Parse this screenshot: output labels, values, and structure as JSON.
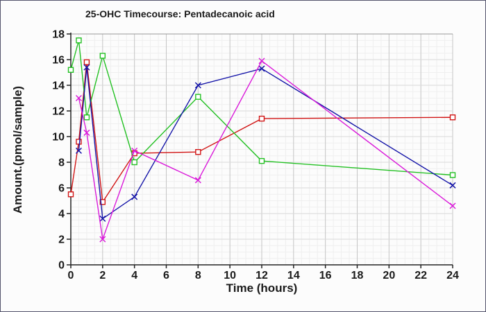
{
  "chart_data": {
    "type": "line",
    "title": "25-OHC Timecourse: Pentadecanoic acid",
    "xlabel": "Time (hours)",
    "ylabel": "Amount.(pmol/sample)",
    "xlim": [
      0,
      24
    ],
    "ylim": [
      0,
      18
    ],
    "x_ticks": [
      0,
      2,
      4,
      6,
      8,
      10,
      12,
      14,
      16,
      18,
      20,
      22,
      24
    ],
    "y_ticks": [
      0,
      2,
      4,
      6,
      8,
      10,
      12,
      14,
      16,
      18
    ],
    "grid": {
      "major": true,
      "minor": true,
      "minor_step": 0.5
    },
    "legend": "none",
    "series": [
      {
        "name": "red-squares",
        "color": "#d11414",
        "marker": "square",
        "x": [
          0,
          0.5,
          1,
          2,
          4,
          8,
          12,
          24
        ],
        "y": [
          5.5,
          9.6,
          15.8,
          4.9,
          8.7,
          8.8,
          11.4,
          11.5
        ]
      },
      {
        "name": "green-squares",
        "color": "#22c022",
        "marker": "square",
        "x": [
          0,
          0.5,
          1,
          2,
          4,
          8,
          12,
          24
        ],
        "y": [
          15.2,
          17.5,
          11.5,
          16.3,
          8.0,
          13.1,
          8.1,
          7.0
        ]
      },
      {
        "name": "blue-x",
        "color": "#1414a8",
        "marker": "x",
        "x": [
          0.5,
          1,
          2,
          4,
          8,
          12,
          24
        ],
        "y": [
          8.9,
          15.4,
          3.6,
          5.3,
          14.0,
          15.3,
          6.2
        ]
      },
      {
        "name": "magenta-x",
        "color": "#da1ada",
        "marker": "x",
        "x": [
          0.5,
          1,
          2,
          4,
          8,
          12,
          24
        ],
        "y": [
          13.0,
          10.3,
          2.0,
          8.9,
          6.6,
          15.9,
          4.6
        ]
      }
    ]
  },
  "style": {
    "axis_color": "#222222",
    "major_grid_vertical": "#c4c4c4",
    "major_grid_horizontal": "#d9d9d9",
    "top_border_color": "#999999",
    "minor_grid": "#efefef",
    "text_color": "#1a1a1a",
    "window_border": "#53536b",
    "background": "#fcfcfc"
  }
}
